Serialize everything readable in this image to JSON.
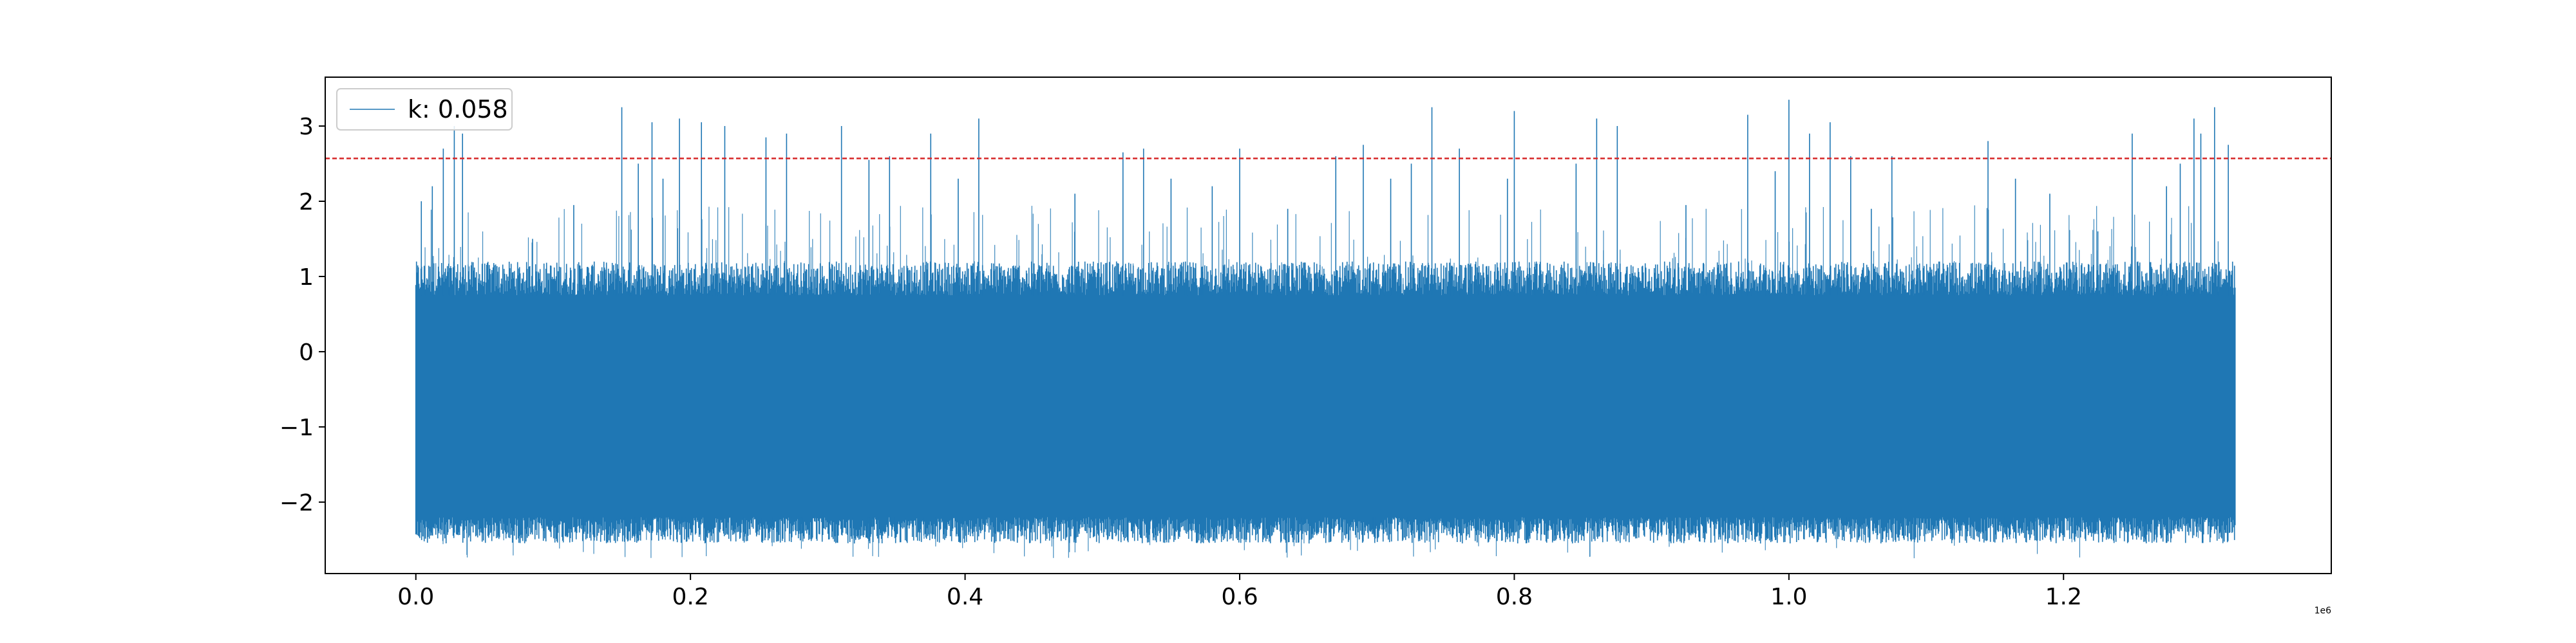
{
  "chart_data": {
    "type": "line",
    "title": "",
    "xlabel": "",
    "ylabel": "",
    "x_offset_label": "1e6",
    "xlim": [
      -0.066,
      1.395
    ],
    "ylim": [
      -2.95,
      3.65
    ],
    "x_ticks": [
      0.0,
      0.2,
      0.4,
      0.6,
      0.8,
      1.0,
      1.2
    ],
    "x_tick_labels": [
      "0.0",
      "0.2",
      "0.4",
      "0.6",
      "0.8",
      "1.0",
      "1.2"
    ],
    "y_ticks": [
      -2,
      -1,
      0,
      1,
      2,
      3
    ],
    "y_tick_labels": [
      "−2",
      "−1",
      "0",
      "1",
      "2",
      "3"
    ],
    "grid": false,
    "legend_position": "top-left",
    "threshold": {
      "value": 2.57,
      "color": "#d62728",
      "style": "dashed"
    },
    "series": [
      {
        "name": "k: 0.058",
        "color": "#1f77b4",
        "x_range": [
          0.0,
          1.325
        ],
        "dense_band": [
          -2.2,
          0.75
        ],
        "noise_floor_min": -2.65,
        "spikes": [
          [
            0.004,
            2.0
          ],
          [
            0.012,
            2.2
          ],
          [
            0.02,
            2.7
          ],
          [
            0.028,
            3.0
          ],
          [
            0.034,
            2.9
          ],
          [
            0.085,
            1.5
          ],
          [
            0.115,
            1.95
          ],
          [
            0.15,
            3.25
          ],
          [
            0.162,
            2.5
          ],
          [
            0.172,
            3.05
          ],
          [
            0.18,
            2.3
          ],
          [
            0.192,
            3.1
          ],
          [
            0.208,
            3.05
          ],
          [
            0.225,
            3.0
          ],
          [
            0.255,
            2.85
          ],
          [
            0.27,
            2.9
          ],
          [
            0.31,
            3.0
          ],
          [
            0.33,
            2.55
          ],
          [
            0.345,
            2.6
          ],
          [
            0.375,
            2.9
          ],
          [
            0.395,
            2.3
          ],
          [
            0.41,
            3.1
          ],
          [
            0.48,
            2.1
          ],
          [
            0.515,
            2.65
          ],
          [
            0.53,
            2.7
          ],
          [
            0.55,
            2.3
          ],
          [
            0.58,
            2.2
          ],
          [
            0.6,
            2.7
          ],
          [
            0.635,
            1.9
          ],
          [
            0.67,
            2.6
          ],
          [
            0.69,
            2.75
          ],
          [
            0.71,
            2.3
          ],
          [
            0.725,
            2.5
          ],
          [
            0.74,
            3.25
          ],
          [
            0.76,
            2.7
          ],
          [
            0.795,
            2.3
          ],
          [
            0.8,
            3.2
          ],
          [
            0.845,
            2.5
          ],
          [
            0.86,
            3.1
          ],
          [
            0.875,
            3.0
          ],
          [
            0.925,
            1.95
          ],
          [
            0.97,
            3.15
          ],
          [
            0.99,
            2.4
          ],
          [
            1.0,
            3.35
          ],
          [
            1.015,
            2.9
          ],
          [
            1.03,
            3.05
          ],
          [
            1.045,
            2.6
          ],
          [
            1.06,
            1.9
          ],
          [
            1.075,
            2.6
          ],
          [
            1.145,
            2.8
          ],
          [
            1.165,
            2.3
          ],
          [
            1.19,
            2.1
          ],
          [
            1.225,
            1.6
          ],
          [
            1.25,
            2.9
          ],
          [
            1.275,
            2.2
          ],
          [
            1.285,
            2.5
          ],
          [
            1.295,
            3.1
          ],
          [
            1.3,
            2.9
          ],
          [
            1.31,
            3.25
          ],
          [
            1.32,
            2.75
          ]
        ]
      }
    ]
  }
}
